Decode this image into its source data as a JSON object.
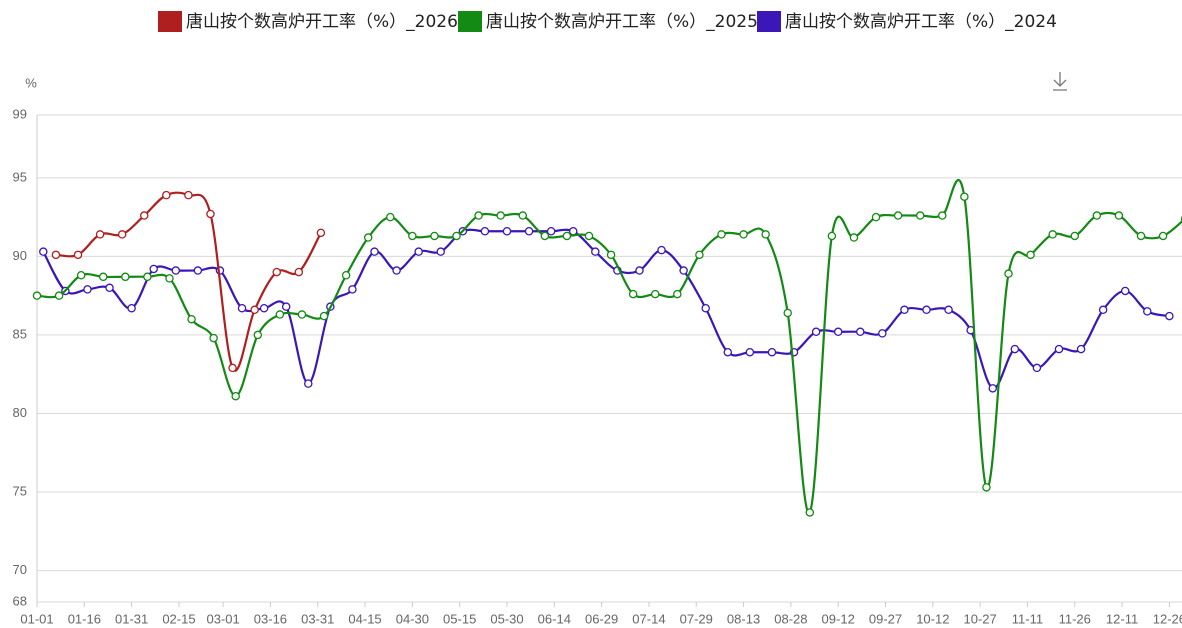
{
  "chart_data": {
    "type": "line",
    "y_unit": "%",
    "xlim": [
      0,
      363
    ],
    "ylim": [
      68,
      99
    ],
    "yticks": [
      68,
      70,
      75,
      80,
      85,
      90,
      95,
      99
    ],
    "xticks": [
      {
        "value": 0,
        "label": "01-01"
      },
      {
        "value": 15,
        "label": "01-16"
      },
      {
        "value": 30,
        "label": "01-31"
      },
      {
        "value": 45,
        "label": "02-15"
      },
      {
        "value": 59,
        "label": "03-01"
      },
      {
        "value": 74,
        "label": "03-16"
      },
      {
        "value": 89,
        "label": "03-31"
      },
      {
        "value": 104,
        "label": "04-15"
      },
      {
        "value": 119,
        "label": "04-30"
      },
      {
        "value": 134,
        "label": "05-15"
      },
      {
        "value": 149,
        "label": "05-30"
      },
      {
        "value": 164,
        "label": "06-14"
      },
      {
        "value": 179,
        "label": "06-29"
      },
      {
        "value": 194,
        "label": "07-14"
      },
      {
        "value": 209,
        "label": "07-29"
      },
      {
        "value": 224,
        "label": "08-13"
      },
      {
        "value": 239,
        "label": "08-28"
      },
      {
        "value": 254,
        "label": "09-12"
      },
      {
        "value": 269,
        "label": "09-27"
      },
      {
        "value": 284,
        "label": "10-12"
      },
      {
        "value": 299,
        "label": "10-27"
      },
      {
        "value": 314,
        "label": "11-11"
      },
      {
        "value": 329,
        "label": "11-26"
      },
      {
        "value": 344,
        "label": "12-11"
      },
      {
        "value": 359,
        "label": "12-26"
      }
    ],
    "grid": true,
    "series": [
      {
        "name": "唐山按个数高炉开工率（%）_2026",
        "color": "#b01f1f",
        "x": [
          6,
          13,
          20,
          27,
          34,
          41,
          48,
          55,
          62,
          69,
          76,
          83,
          90
        ],
        "values": [
          90.1,
          90.1,
          91.4,
          91.4,
          92.6,
          93.9,
          93.9,
          92.7,
          82.9,
          86.6,
          89.0,
          89.0,
          91.5
        ]
      },
      {
        "name": "唐山按个数高炉开工率（%）_2025",
        "color": "#138a13",
        "x": [
          0,
          7,
          14,
          21,
          28,
          35,
          42,
          49,
          56,
          63,
          70,
          77,
          84,
          91,
          98,
          105,
          112,
          119,
          126,
          133,
          140,
          147,
          154,
          161,
          168,
          175,
          182,
          189,
          196,
          203,
          210,
          217,
          224,
          231,
          238,
          245,
          252,
          259,
          266,
          273,
          280,
          287,
          294,
          301,
          308,
          315,
          322,
          329,
          336,
          343,
          350,
          357,
          364
        ],
        "values": [
          87.5,
          87.5,
          88.8,
          88.7,
          88.7,
          88.7,
          88.6,
          86.0,
          84.8,
          81.1,
          85.0,
          86.3,
          86.3,
          86.2,
          88.8,
          91.2,
          92.5,
          91.3,
          91.3,
          91.3,
          92.6,
          92.6,
          92.6,
          91.3,
          91.3,
          91.3,
          90.1,
          87.6,
          87.6,
          87.6,
          90.1,
          91.4,
          91.4,
          91.4,
          86.4,
          73.7,
          91.3,
          91.2,
          92.5,
          92.6,
          92.6,
          92.6,
          93.8,
          75.3,
          88.9,
          90.1,
          91.4,
          91.3,
          92.6,
          92.6,
          91.3,
          91.3,
          92.4
        ]
      },
      {
        "name": "唐山按个数高炉开工率（%）_2024",
        "color": "#3b17b8",
        "x": [
          2,
          9,
          16,
          23,
          30,
          37,
          44,
          51,
          58,
          65,
          72,
          79,
          86,
          93,
          100,
          107,
          114,
          121,
          128,
          135,
          142,
          149,
          156,
          163,
          170,
          177,
          184,
          191,
          198,
          205,
          212,
          219,
          226,
          233,
          240,
          247,
          254,
          261,
          268,
          275,
          282,
          289,
          296,
          303,
          310,
          317,
          324,
          331,
          338,
          345,
          352,
          359
        ],
        "values": [
          90.3,
          87.8,
          87.9,
          88.0,
          86.7,
          89.2,
          89.1,
          89.1,
          89.1,
          86.7,
          86.7,
          86.8,
          81.9,
          86.8,
          87.9,
          90.3,
          89.1,
          90.3,
          90.3,
          91.6,
          91.6,
          91.6,
          91.6,
          91.6,
          91.6,
          90.3,
          89.1,
          89.1,
          90.4,
          89.1,
          86.7,
          83.9,
          83.9,
          83.9,
          83.9,
          85.2,
          85.2,
          85.2,
          85.1,
          86.6,
          86.6,
          86.6,
          85.3,
          81.6,
          84.1,
          82.9,
          84.1,
          84.1,
          86.6,
          87.8,
          86.5,
          86.2
        ]
      }
    ]
  }
}
